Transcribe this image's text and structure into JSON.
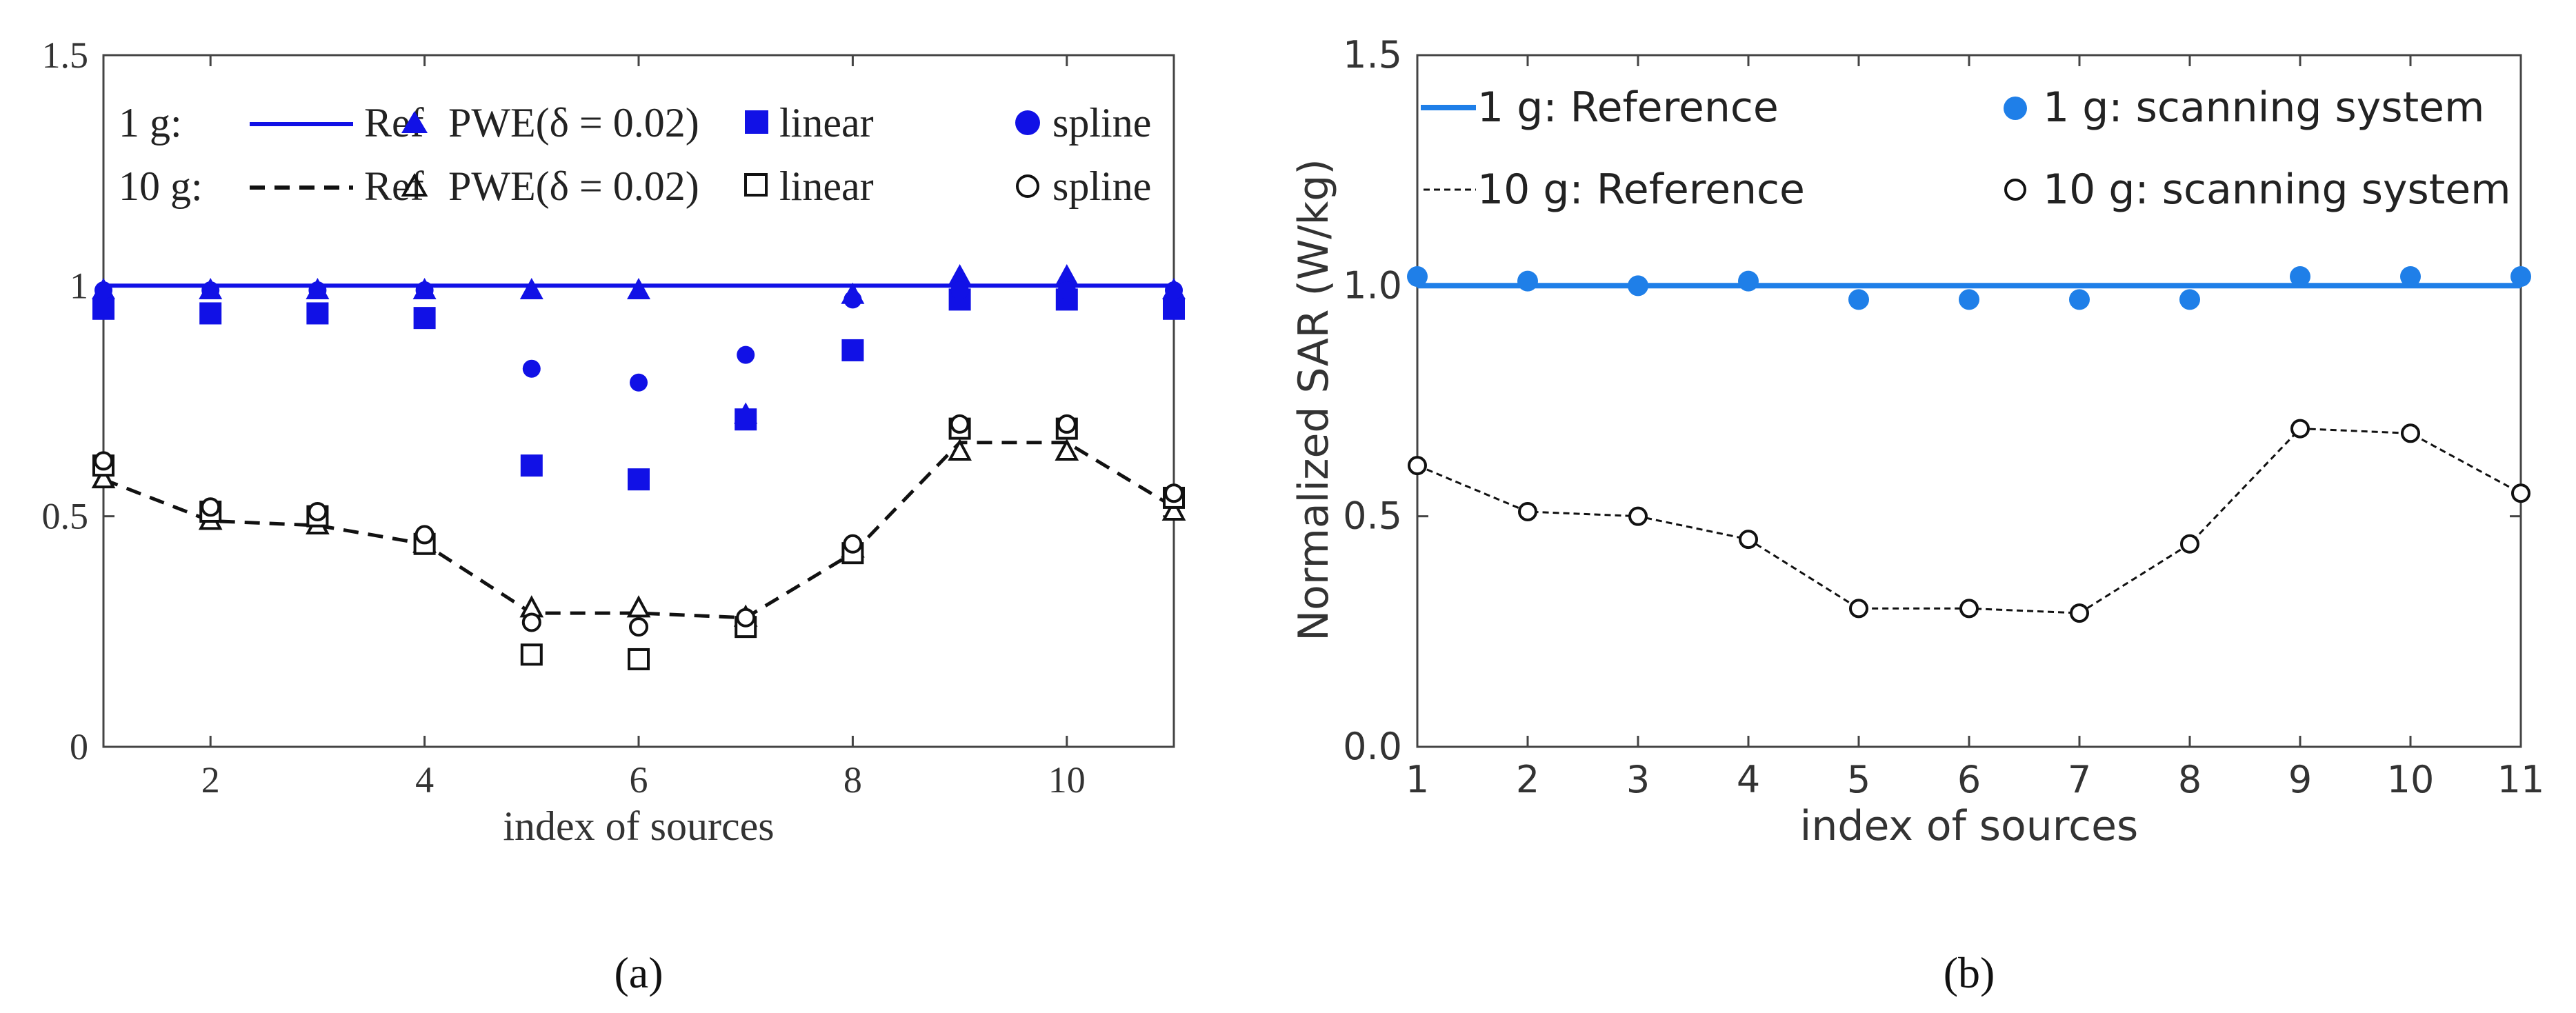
{
  "chart_data": [
    {
      "panel": "a",
      "type": "scatter",
      "caption": "(a)",
      "xlabel": "index of sources",
      "ylabel": "",
      "xlim": [
        1,
        11
      ],
      "ylim": [
        0,
        1.5
      ],
      "xticks": [
        "2",
        "4",
        "6",
        "8",
        "10"
      ],
      "xtick_values": [
        2,
        4,
        6,
        8,
        10
      ],
      "yticks": [
        "0",
        "0.5",
        "1",
        "1.5"
      ],
      "ytick_values": [
        0,
        0.5,
        1,
        1.5
      ],
      "colors": {
        "one_g": "#1111e6",
        "ten_g": "#111111"
      },
      "legend": {
        "row_labels": [
          "1 g:",
          "10 g:"
        ],
        "ref": "Ref",
        "pwe": "PWE(δ = 0.02)",
        "linear": "linear",
        "spline": "spline"
      },
      "x": [
        1,
        2,
        3,
        4,
        5,
        6,
        7,
        8,
        9,
        10,
        11
      ],
      "series": [
        {
          "name": "1 g: Ref",
          "marker": "line",
          "values": [
            1.0,
            1.0,
            1.0,
            1.0,
            1.0,
            1.0,
            1.0,
            1.0,
            1.0,
            1.0,
            1.0
          ]
        },
        {
          "name": "1 g: PWE(δ = 0.02)",
          "marker": "triangle-filled",
          "values": [
            0.99,
            0.99,
            0.99,
            0.99,
            0.99,
            0.99,
            0.72,
            0.98,
            1.02,
            1.02,
            0.99
          ]
        },
        {
          "name": "1 g: linear",
          "marker": "square-filled",
          "values": [
            0.95,
            0.94,
            0.94,
            0.93,
            0.61,
            0.58,
            0.71,
            0.86,
            0.97,
            0.97,
            0.95
          ]
        },
        {
          "name": "1 g: spline",
          "marker": "circle-filled",
          "values": [
            0.99,
            0.99,
            0.99,
            0.99,
            0.82,
            0.79,
            0.85,
            0.97,
            0.99,
            0.99,
            0.99
          ]
        },
        {
          "name": "10 g: Ref",
          "marker": "dashed-line",
          "values": [
            0.58,
            0.49,
            0.48,
            0.44,
            0.29,
            0.29,
            0.28,
            0.42,
            0.66,
            0.66,
            0.52
          ]
        },
        {
          "name": "10 g: PWE(δ = 0.02)",
          "marker": "triangle-open",
          "values": [
            0.58,
            0.49,
            0.48,
            0.44,
            0.3,
            0.3,
            0.28,
            0.43,
            0.64,
            0.64,
            0.51
          ]
        },
        {
          "name": "10 g: linear",
          "marker": "square-open",
          "values": [
            0.61,
            0.51,
            0.5,
            0.44,
            0.2,
            0.19,
            0.26,
            0.42,
            0.69,
            0.69,
            0.54
          ]
        },
        {
          "name": "10 g: spline",
          "marker": "circle-open",
          "values": [
            0.62,
            0.52,
            0.51,
            0.46,
            0.27,
            0.26,
            0.28,
            0.44,
            0.7,
            0.7,
            0.55
          ]
        }
      ]
    },
    {
      "panel": "b",
      "type": "scatter",
      "caption": "(b)",
      "xlabel": "index of sources",
      "ylabel": "Normalized SAR (W/kg)",
      "xlim": [
        1,
        11
      ],
      "ylim": [
        0,
        1.5
      ],
      "xticks": [
        "1",
        "2",
        "3",
        "4",
        "5",
        "6",
        "7",
        "8",
        "9",
        "10",
        "11"
      ],
      "xtick_values": [
        1,
        2,
        3,
        4,
        5,
        6,
        7,
        8,
        9,
        10,
        11
      ],
      "yticks": [
        "0.0",
        "0.5",
        "1.0",
        "1.5"
      ],
      "ytick_values": [
        0,
        0.5,
        1,
        1.5
      ],
      "colors": {
        "one_g": "#1f7fe8",
        "ten_g": "#111111"
      },
      "x": [
        1,
        2,
        3,
        4,
        5,
        6,
        7,
        8,
        9,
        10,
        11
      ],
      "series": [
        {
          "name": "1 g: Reference",
          "marker": "line",
          "values": [
            1.0,
            1.0,
            1.0,
            1.0,
            1.0,
            1.0,
            1.0,
            1.0,
            1.0,
            1.0,
            1.0
          ]
        },
        {
          "name": "1 g: scanning system",
          "marker": "circle-filled",
          "values": [
            1.02,
            1.01,
            1.0,
            1.01,
            0.97,
            0.97,
            0.97,
            0.97,
            1.02,
            1.02,
            1.02
          ]
        },
        {
          "name": "10 g: Reference",
          "marker": "dashed-line",
          "values": [
            0.61,
            0.51,
            0.5,
            0.45,
            0.3,
            0.3,
            0.29,
            0.44,
            0.69,
            0.68,
            0.55
          ]
        },
        {
          "name": "10 g: scanning system",
          "marker": "circle-open",
          "values": [
            0.61,
            0.51,
            0.5,
            0.45,
            0.3,
            0.3,
            0.29,
            0.44,
            0.69,
            0.68,
            0.55
          ]
        }
      ]
    }
  ]
}
